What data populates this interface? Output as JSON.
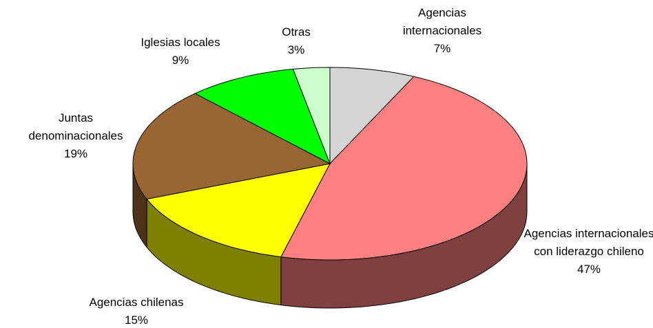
{
  "chart_data": {
    "type": "pie",
    "projection": "3d",
    "categories": [
      "Agencias internacionales",
      "Agencias internacionales con liderazgo chileno",
      "Agencias chilenas",
      "Juntas denominacionales",
      "Iglesias locales",
      "Otras"
    ],
    "values": [
      7,
      47,
      15,
      19,
      9,
      3
    ],
    "value_labels": [
      "7%",
      "47%",
      "15%",
      "19%",
      "9%",
      "3%"
    ],
    "colors": [
      "#d4d4d4",
      "#ff8080",
      "#ffff00",
      "#996633",
      "#00ff00",
      "#ccffcc"
    ]
  }
}
